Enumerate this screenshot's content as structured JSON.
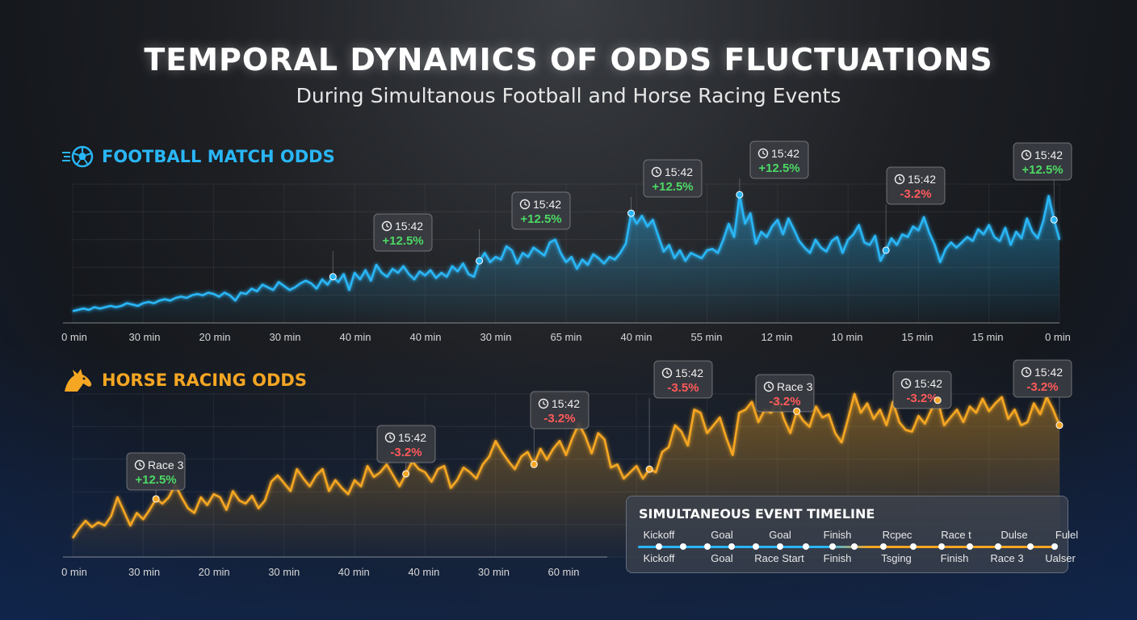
{
  "title": "TEMPORAL DYNAMICS OF ODDS FLUCTUATIONS",
  "subtitle": "During Simultanous Football and Horse Racing Events",
  "colors": {
    "football": "#29b6f6",
    "horse": "#f5a623",
    "positive": "#4cd964",
    "negative": "#ff5a5a"
  },
  "football": {
    "heading": "FOOTBALL MATCH ODDS",
    "icon": "soccer-ball-icon"
  },
  "horse": {
    "heading": "HORSE RACING ODDS",
    "icon": "horse-head-icon"
  },
  "chart_data": [
    {
      "type": "line",
      "name": "football",
      "title": "FOOTBALL MATCH ODDS",
      "x_tick_labels": [
        "0 min",
        "30 min",
        "20 min",
        "30 min",
        "40 min",
        "40 min",
        "30 min",
        "65 min",
        "40 min",
        "55 min",
        "12 min",
        "10 min",
        "15 min",
        "15 min",
        "0 min"
      ],
      "ylim": [
        0,
        100
      ],
      "grid": true,
      "values": [
        4,
        5,
        6,
        5,
        7,
        6,
        7,
        8,
        7,
        8,
        10,
        9,
        8,
        10,
        11,
        10,
        12,
        13,
        12,
        14,
        15,
        14,
        16,
        17,
        16,
        18,
        17,
        15,
        18,
        16,
        12,
        18,
        17,
        21,
        19,
        24,
        22,
        20,
        26,
        23,
        20,
        22,
        25,
        27,
        25,
        21,
        28,
        24,
        30,
        26,
        32,
        20,
        33,
        28,
        35,
        27,
        39,
        33,
        30,
        36,
        33,
        38,
        32,
        28,
        34,
        31,
        35,
        29,
        33,
        30,
        38,
        34,
        40,
        32,
        30,
        42,
        48,
        41,
        45,
        43,
        53,
        50,
        40,
        48,
        45,
        52,
        49,
        46,
        56,
        58,
        48,
        41,
        45,
        36,
        43,
        39,
        47,
        44,
        40,
        45,
        43,
        48,
        55,
        78,
        70,
        76,
        68,
        73,
        61,
        49,
        54,
        44,
        50,
        42,
        48,
        46,
        44,
        50,
        51,
        48,
        58,
        70,
        60,
        92,
        70,
        78,
        55,
        64,
        60,
        68,
        73,
        62,
        74,
        66,
        57,
        52,
        48,
        58,
        52,
        49,
        57,
        60,
        48,
        58,
        62,
        69,
        56,
        54,
        61,
        42,
        50,
        59,
        54,
        62,
        60,
        68,
        65,
        75,
        63,
        54,
        41,
        51,
        56,
        52,
        56,
        60,
        57,
        66,
        62,
        69,
        60,
        57,
        67,
        54,
        64,
        59,
        74,
        64,
        59,
        72,
        91,
        73,
        58
      ]
    },
    {
      "type": "line",
      "name": "horse",
      "title": "HORSE RACING ODDS",
      "x_tick_labels": [
        "0 min",
        "30 min",
        "20 min",
        "30 min",
        "40 min",
        "40 min",
        "30 min",
        "60 min"
      ],
      "ylim": [
        0,
        100
      ],
      "grid": true,
      "values": [
        8,
        14,
        19,
        15,
        18,
        16,
        22,
        34,
        25,
        16,
        24,
        20,
        26,
        33,
        30,
        34,
        42,
        34,
        27,
        24,
        34,
        29,
        36,
        34,
        26,
        38,
        32,
        30,
        35,
        27,
        32,
        44,
        48,
        43,
        38,
        52,
        46,
        41,
        48,
        52,
        38,
        45,
        40,
        36,
        45,
        41,
        54,
        47,
        50,
        55,
        48,
        41,
        49,
        57,
        52,
        50,
        44,
        52,
        54,
        40,
        45,
        53,
        50,
        46,
        55,
        60,
        70,
        63,
        57,
        52,
        60,
        63,
        55,
        65,
        58,
        65,
        70,
        61,
        72,
        81,
        73,
        62,
        75,
        71,
        53,
        55,
        46,
        50,
        54,
        46,
        52,
        50,
        63,
        66,
        80,
        76,
        67,
        90,
        88,
        75,
        80,
        85,
        72,
        61,
        88,
        90,
        95,
        82,
        90,
        88,
        97,
        84,
        75,
        89,
        83,
        79,
        92,
        85,
        87,
        75,
        69,
        84,
        100,
        88,
        94,
        84,
        90,
        80,
        95,
        82,
        77,
        76,
        86,
        81,
        90,
        96,
        80,
        85,
        90,
        82,
        92,
        88,
        97,
        89,
        94,
        98,
        84,
        90,
        80,
        82,
        94,
        87,
        98,
        90,
        80,
        77,
        91,
        99,
        93,
        87,
        80,
        94,
        89,
        95,
        83,
        77,
        91,
        86,
        86,
        95,
        82,
        75,
        74,
        93,
        88,
        96,
        81,
        84,
        98,
        83,
        77,
        90,
        86,
        90,
        75,
        93,
        92,
        85,
        81,
        86,
        87,
        95,
        84,
        76,
        81,
        93,
        88,
        91,
        82,
        79,
        84,
        76,
        85,
        80,
        90,
        85,
        93,
        82,
        84,
        89,
        78,
        86,
        90,
        82,
        88,
        84,
        94,
        86,
        90,
        76,
        92,
        87,
        81,
        79,
        83,
        80,
        88,
        78,
        84,
        90,
        82,
        76,
        86,
        82,
        92,
        80,
        96,
        80,
        84,
        78,
        86,
        88,
        84,
        79,
        86,
        85,
        93,
        90,
        80,
        83,
        84,
        94,
        86,
        82,
        85,
        88,
        82,
        95,
        80,
        78,
        90,
        87,
        84,
        91,
        96,
        82,
        80,
        91,
        85,
        94,
        79,
        83,
        95,
        80,
        76,
        92,
        87,
        88,
        100,
        90,
        83,
        86,
        90,
        77,
        81,
        78,
        95,
        82,
        88,
        85,
        96,
        86,
        81,
        90,
        77,
        83,
        88,
        84,
        92,
        80,
        87,
        82,
        94,
        79,
        75,
        82,
        91,
        89,
        83,
        95,
        78,
        80,
        86,
        94,
        88,
        92,
        76,
        82,
        90,
        80,
        86,
        98,
        80,
        82,
        93,
        78,
        88,
        84,
        90,
        80,
        92,
        81,
        86,
        80,
        96,
        83,
        80,
        90,
        84,
        78,
        91,
        84,
        90,
        82,
        97,
        80,
        86,
        82,
        90,
        96,
        80,
        76,
        83,
        90,
        82,
        86,
        80,
        88,
        100
      ],
      "visible_count": 155
    }
  ],
  "annotations": {
    "football": [
      {
        "time": "15:42",
        "value": "+12.5%",
        "sign": "positive"
      },
      {
        "time": "15:42",
        "value": "+12.5%",
        "sign": "positive"
      },
      {
        "time": "15:42",
        "value": "+12.5%",
        "sign": "positive"
      },
      {
        "time": "15:42",
        "value": "+12.5%",
        "sign": "positive"
      },
      {
        "time": "15:42",
        "value": "-3.2%",
        "sign": "negative"
      },
      {
        "time": "15:42",
        "value": "+12.5%",
        "sign": "positive"
      }
    ],
    "horse": [
      {
        "time": "Race 3",
        "value": "+12.5%",
        "sign": "positive"
      },
      {
        "time": "15:42",
        "value": "-3.2%",
        "sign": "negative"
      },
      {
        "time": "15:42",
        "value": "-3.2%",
        "sign": "negative"
      },
      {
        "time": "15:42",
        "value": "-3.5%",
        "sign": "negative"
      },
      {
        "time": "Race 3",
        "value": "-3.2%",
        "sign": "negative"
      },
      {
        "time": "15:42",
        "value": "-3.2%",
        "sign": "negative"
      },
      {
        "time": "15:42",
        "value": "-3.2%",
        "sign": "negative"
      }
    ]
  },
  "timeline": {
    "title": "SIMULTANEOUS EVENT TIMELINE",
    "top_labels": [
      "Kickoff",
      "Goal",
      "Goal",
      "Finish",
      "Rcpec",
      "Race t",
      "Dulse",
      "Fulel"
    ],
    "bottom_labels": [
      "Kickoff",
      "Goal",
      "Race Start",
      "Finish",
      "Tsging",
      "Finish",
      "Race 3",
      "Ualser"
    ]
  }
}
